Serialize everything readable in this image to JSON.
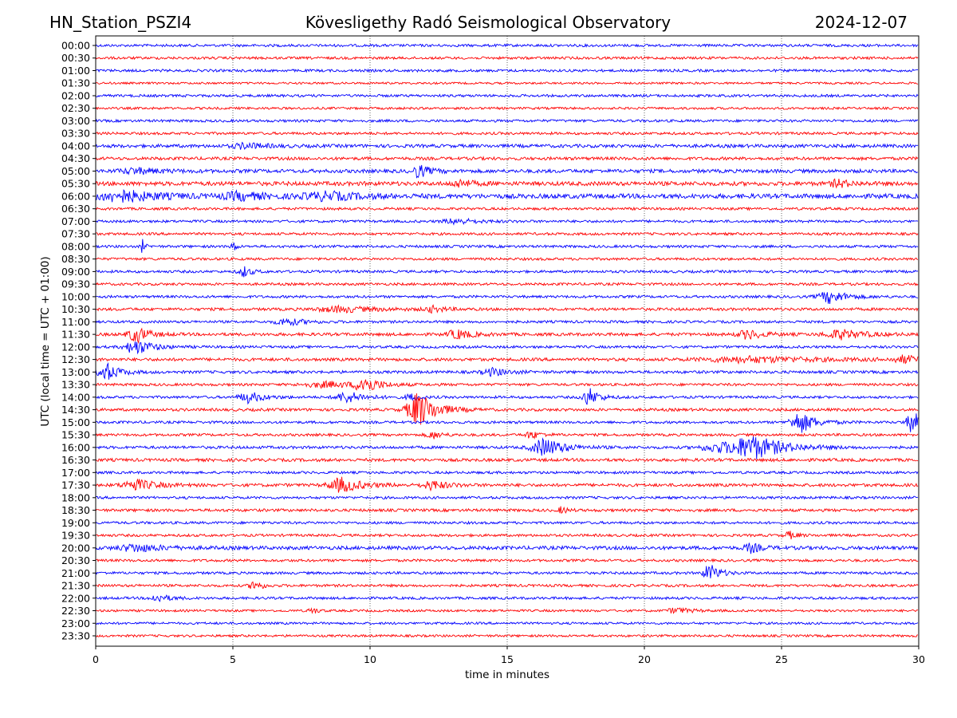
{
  "header": {
    "station": "HN_Station_PSZI4",
    "observatory": "Kövesligethy Radó Seismological Observatory",
    "date": "2024-12-07"
  },
  "chart_data": {
    "type": "line",
    "title": "Kövesligethy Radó Seismological Observatory",
    "xlabel": "time in minutes",
    "ylabel": "UTC (local time = UTC + 01:00)",
    "xlim": [
      0,
      30
    ],
    "xticks": [
      "0",
      "5",
      "10",
      "15",
      "20",
      "25",
      "30"
    ],
    "xtick_values": [
      0,
      5,
      10,
      15,
      20,
      25,
      30
    ],
    "grid": "vertical dotted",
    "colors": [
      "#0000ff",
      "#ff0000"
    ],
    "traces": [
      {
        "label": "00:00",
        "noise": 1.0,
        "events": []
      },
      {
        "label": "00:30",
        "noise": 1.0,
        "events": []
      },
      {
        "label": "01:00",
        "noise": 1.0,
        "events": []
      },
      {
        "label": "01:30",
        "noise": 0.8,
        "events": []
      },
      {
        "label": "02:00",
        "noise": 1.0,
        "events": []
      },
      {
        "label": "02:30",
        "noise": 0.9,
        "events": []
      },
      {
        "label": "03:00",
        "noise": 1.0,
        "events": []
      },
      {
        "label": "03:30",
        "noise": 1.0,
        "events": []
      },
      {
        "label": "04:00",
        "noise": 1.3,
        "events": [
          [
            5.5,
            1.5,
            0.8
          ]
        ]
      },
      {
        "label": "04:30",
        "noise": 1.2,
        "events": []
      },
      {
        "label": "05:00",
        "noise": 1.4,
        "events": [
          [
            11.8,
            3.5,
            0.4
          ],
          [
            1.5,
            1.5,
            1
          ]
        ]
      },
      {
        "label": "05:30",
        "noise": 1.6,
        "events": [
          [
            13.3,
            2,
            0.5
          ],
          [
            27.1,
            2,
            0.5
          ]
        ]
      },
      {
        "label": "06:00",
        "noise": 1.8,
        "events": [
          [
            1.0,
            3,
            1.5
          ],
          [
            5.3,
            2,
            1
          ],
          [
            8.5,
            2,
            1.5
          ]
        ]
      },
      {
        "label": "06:30",
        "noise": 1.0,
        "events": []
      },
      {
        "label": "07:00",
        "noise": 1.0,
        "events": [
          [
            13.2,
            1.5,
            0.8
          ]
        ]
      },
      {
        "label": "07:30",
        "noise": 1.0,
        "events": []
      },
      {
        "label": "08:00",
        "noise": 1.0,
        "events": [
          [
            1.7,
            4,
            0.1
          ],
          [
            5.0,
            5,
            0.1
          ]
        ]
      },
      {
        "label": "08:30",
        "noise": 1.0,
        "events": []
      },
      {
        "label": "09:00",
        "noise": 1.0,
        "events": [
          [
            5.4,
            3,
            0.3
          ]
        ]
      },
      {
        "label": "09:30",
        "noise": 1.0,
        "events": []
      },
      {
        "label": "10:00",
        "noise": 1.0,
        "events": [
          [
            26.8,
            3.5,
            0.7
          ]
        ]
      },
      {
        "label": "10:30",
        "noise": 1.1,
        "events": [
          [
            9.0,
            1.5,
            1.5
          ],
          [
            12.3,
            1.5,
            0.5
          ]
        ]
      },
      {
        "label": "11:00",
        "noise": 1.0,
        "events": [
          [
            7.0,
            2,
            0.7
          ]
        ]
      },
      {
        "label": "11:30",
        "noise": 1.2,
        "events": [
          [
            1.5,
            4.5,
            0.5
          ],
          [
            13.2,
            2.5,
            0.6
          ],
          [
            23.8,
            2.5,
            0.6
          ],
          [
            27.2,
            2.5,
            1
          ]
        ]
      },
      {
        "label": "12:00",
        "noise": 1.0,
        "events": [
          [
            1.5,
            4,
            0.7
          ]
        ]
      },
      {
        "label": "12:30",
        "noise": 1.2,
        "events": [
          [
            24,
            1.5,
            3
          ],
          [
            29.5,
            2,
            0.6
          ]
        ]
      },
      {
        "label": "13:00",
        "noise": 1.1,
        "events": [
          [
            0.4,
            5,
            0.5
          ],
          [
            14.5,
            2,
            0.6
          ]
        ]
      },
      {
        "label": "13:30",
        "noise": 1.0,
        "events": [
          [
            9.8,
            5,
            0.5
          ],
          [
            8.5,
            1.5,
            1.5
          ]
        ]
      },
      {
        "label": "14:00",
        "noise": 1.0,
        "events": [
          [
            5.6,
            3,
            0.6
          ],
          [
            9.2,
            3,
            0.7
          ],
          [
            18.0,
            5,
            0.4
          ],
          [
            11.5,
            2,
            0.3
          ]
        ]
      },
      {
        "label": "14:30",
        "noise": 1.1,
        "events": [
          [
            11.8,
            10,
            0.7
          ]
        ]
      },
      {
        "label": "15:00",
        "noise": 1.0,
        "events": [
          [
            25.7,
            6,
            0.6
          ],
          [
            29.8,
            6,
            0.4
          ]
        ]
      },
      {
        "label": "15:30",
        "noise": 1.0,
        "events": [
          [
            12.3,
            2,
            0.4
          ],
          [
            15.9,
            2,
            0.4
          ]
        ]
      },
      {
        "label": "16:00",
        "noise": 1.1,
        "events": [
          [
            16.4,
            5,
            0.8
          ],
          [
            24.0,
            6,
            1.2
          ],
          [
            22.8,
            2.5,
            1.2
          ]
        ]
      },
      {
        "label": "16:30",
        "noise": 1.2,
        "events": []
      },
      {
        "label": "17:00",
        "noise": 1.0,
        "events": []
      },
      {
        "label": "17:30",
        "noise": 1.2,
        "events": [
          [
            1.5,
            3,
            0.8
          ],
          [
            9.0,
            4,
            0.8
          ],
          [
            12.3,
            2.5,
            0.6
          ]
        ]
      },
      {
        "label": "18:00",
        "noise": 1.0,
        "events": []
      },
      {
        "label": "18:30",
        "noise": 1.1,
        "events": [
          [
            17.0,
            2,
            0.2
          ]
        ]
      },
      {
        "label": "19:00",
        "noise": 1.0,
        "events": []
      },
      {
        "label": "19:30",
        "noise": 1.0,
        "events": [
          [
            25.3,
            2,
            0.3
          ]
        ]
      },
      {
        "label": "20:00",
        "noise": 1.4,
        "events": [
          [
            1.5,
            2,
            1
          ],
          [
            23.9,
            2.5,
            0.4
          ]
        ]
      },
      {
        "label": "20:30",
        "noise": 1.0,
        "events": []
      },
      {
        "label": "21:00",
        "noise": 1.0,
        "events": [
          [
            22.4,
            5,
            0.4
          ]
        ]
      },
      {
        "label": "21:30",
        "noise": 1.0,
        "events": [
          [
            5.8,
            3,
            0.3
          ]
        ]
      },
      {
        "label": "22:00",
        "noise": 1.0,
        "events": [
          [
            2.3,
            2,
            0.5
          ]
        ]
      },
      {
        "label": "22:30",
        "noise": 0.9,
        "events": [
          [
            7.9,
            2,
            0.2
          ],
          [
            21.2,
            1.5,
            0.6
          ]
        ]
      },
      {
        "label": "23:00",
        "noise": 0.9,
        "events": []
      },
      {
        "label": "23:30",
        "noise": 0.9,
        "events": []
      }
    ]
  }
}
